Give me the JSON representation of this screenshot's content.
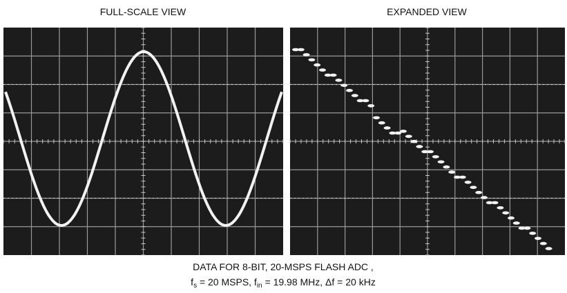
{
  "panels": [
    {
      "title": "FULL-SCALE VIEW"
    },
    {
      "title": "EXPANDED VIEW"
    }
  ],
  "caption": {
    "line1": "DATA FOR 8-BIT, 20-MSPS FLASH ADC ,",
    "line2": [
      "f",
      "s",
      " = 20 MSPS, f",
      "in",
      " = 19.98 MHz, Δf = 20 kHz"
    ]
  }
}
